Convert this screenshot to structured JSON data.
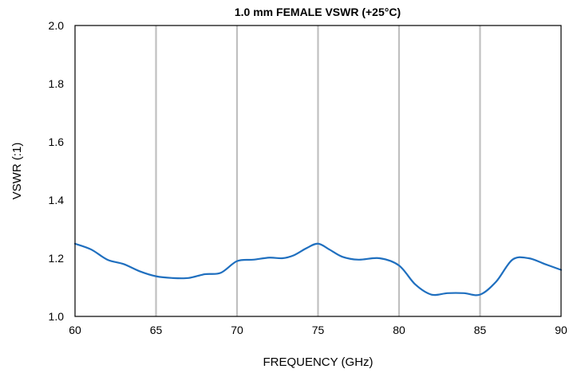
{
  "chart_data": {
    "type": "line",
    "title": "1.0 mm FEMALE VSWR (+25°C)",
    "xlabel": "FREQUENCY  (GHz)",
    "ylabel": "VSWR (:1)",
    "xlim": [
      60,
      90
    ],
    "ylim": [
      1.0,
      2.0
    ],
    "xticks": [
      60,
      65,
      70,
      75,
      80,
      85,
      90
    ],
    "xtick_labels": [
      "60",
      "65",
      "70",
      "75",
      "80",
      "85",
      "90"
    ],
    "yticks": [
      1.0,
      1.2,
      1.4,
      1.6,
      1.8,
      2.0
    ],
    "ytick_labels": [
      "1.0",
      "1.2",
      "1.4",
      "1.6",
      "1.8",
      "2.0"
    ],
    "grid": "vertical",
    "series_color": "#1f6fbf",
    "grid_color": "#c0c0c0",
    "series": [
      {
        "x": [
          60,
          61,
          62,
          63,
          64,
          65,
          66,
          67,
          68,
          69,
          70,
          71,
          72,
          72.8,
          73.5,
          74.3,
          75,
          75.7,
          76.5,
          77.5,
          78.8,
          80,
          81,
          82,
          83,
          84,
          85,
          86,
          87,
          88,
          89,
          90
        ],
        "values": [
          1.25,
          1.23,
          1.195,
          1.18,
          1.155,
          1.138,
          1.132,
          1.132,
          1.145,
          1.15,
          1.19,
          1.195,
          1.202,
          1.2,
          1.21,
          1.235,
          1.25,
          1.23,
          1.205,
          1.195,
          1.2,
          1.175,
          1.11,
          1.075,
          1.08,
          1.08,
          1.075,
          1.12,
          1.195,
          1.2,
          1.18,
          1.16
        ]
      }
    ]
  }
}
